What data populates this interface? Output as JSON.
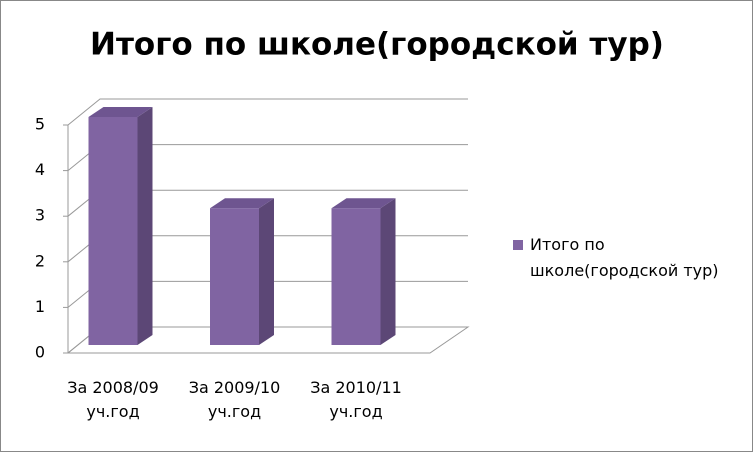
{
  "chart_data": {
    "type": "bar3d",
    "title": "Итого по школе(городской  тур)",
    "categories": [
      "За 2008/09 уч.год",
      "За 2009/10 уч.год",
      "За 2010/11 уч.год"
    ],
    "series": [
      {
        "name": "Итого по школе(городской  тур)",
        "color": "#8064a2",
        "values": [
          5,
          3,
          3
        ]
      }
    ],
    "ylim": [
      0,
      5
    ],
    "yticks": [
      0,
      1,
      2,
      3,
      4,
      5
    ],
    "grid": true,
    "legend": "right"
  }
}
